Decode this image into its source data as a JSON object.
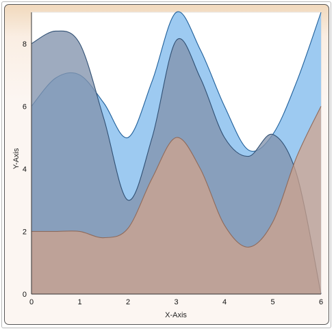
{
  "chart_data": {
    "type": "area",
    "xlabel": "X-Axis",
    "ylabel": "Y-Axis",
    "xlim": [
      0,
      6
    ],
    "ylim": [
      0,
      9
    ],
    "grid": true,
    "x_ticks": [
      "0",
      "1",
      "2",
      "3",
      "4",
      "5",
      "6"
    ],
    "y_ticks": [
      "0",
      "2",
      "4",
      "6",
      "8"
    ],
    "x": [
      0,
      0.5,
      1,
      1.5,
      2,
      2.5,
      3,
      3.5,
      4,
      4.5,
      5,
      5.5,
      6
    ],
    "series": [
      {
        "color": "#ffffff",
        "fill": "#ffffff",
        "stroke": "#e8e8e8",
        "values": [
          9,
          9,
          9,
          9,
          9,
          9,
          9,
          9,
          9,
          9,
          9,
          9,
          9
        ]
      },
      {
        "color": "#7fb8e8",
        "fill": "#8cc1ee",
        "stroke": "#1f5f9a",
        "values": [
          6,
          6.9,
          7.0,
          6.1,
          5.0,
          6.8,
          9.0,
          7.8,
          6.0,
          4.6,
          5.1,
          6.8,
          9.0
        ]
      },
      {
        "color": "#8e99ae",
        "fill": "#8393ad",
        "stroke": "#2f4f73",
        "values": [
          8,
          8.4,
          8.0,
          5.6,
          3.0,
          5.0,
          8.1,
          6.9,
          5.0,
          4.4,
          5.1,
          3.8,
          0.0
        ]
      },
      {
        "color": "#d7a485",
        "fill": "#d2a38a",
        "stroke": "#8f6a5a",
        "values": [
          2,
          2.0,
          2.0,
          1.8,
          2.1,
          3.7,
          5.0,
          4.0,
          2.2,
          1.5,
          2.3,
          4.4,
          6.0
        ]
      }
    ]
  }
}
